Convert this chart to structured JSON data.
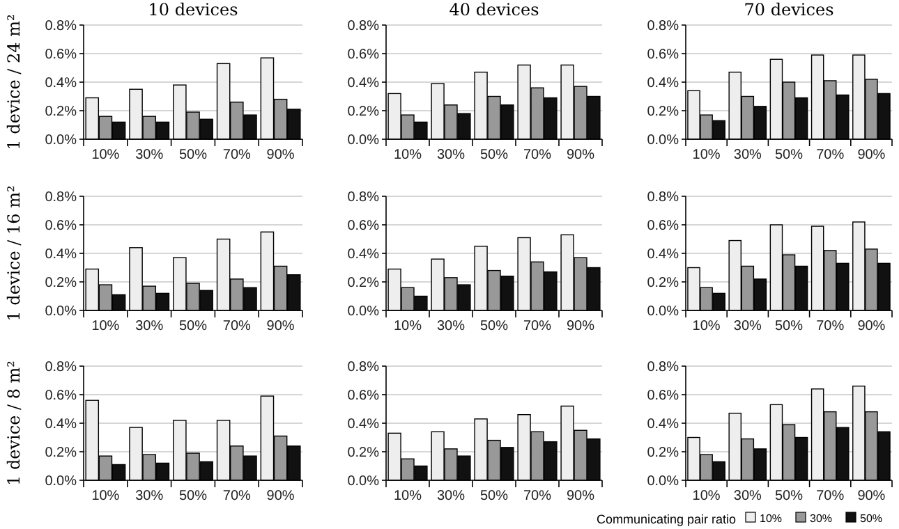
{
  "chart_data": [
    {
      "type": "bar",
      "title": "10 devices",
      "ylabel": "1 device / 24 m²",
      "categories": [
        "10%",
        "30%",
        "50%",
        "70%",
        "90%"
      ],
      "ylim": [
        0,
        0.8
      ],
      "yticks": [
        {
          "value": 0,
          "label": "0.0%"
        },
        {
          "value": 0.2,
          "label": "0.2%"
        },
        {
          "value": 0.4,
          "label": "0.4%"
        },
        {
          "value": 0.6,
          "label": "0.6%"
        },
        {
          "value": 0.8,
          "label": "0.8%"
        }
      ],
      "grid": "y",
      "series": [
        {
          "color": "#eeeeee",
          "values": [
            0.29,
            0.35,
            0.38,
            0.53,
            0.57
          ]
        },
        {
          "color": "#999999",
          "values": [
            0.16,
            0.16,
            0.19,
            0.26,
            0.28
          ]
        },
        {
          "color": "#111111",
          "values": [
            0.12,
            0.12,
            0.14,
            0.17,
            0.21
          ]
        }
      ]
    },
    {
      "type": "bar",
      "title": "40 devices",
      "categories": [
        "10%",
        "30%",
        "50%",
        "70%",
        "90%"
      ],
      "ylim": [
        0,
        0.8
      ],
      "yticks": [
        {
          "value": 0,
          "label": "0.0%"
        },
        {
          "value": 0.2,
          "label": "0.2%"
        },
        {
          "value": 0.4,
          "label": "0.4%"
        },
        {
          "value": 0.6,
          "label": "0.6%"
        },
        {
          "value": 0.8,
          "label": "0.8%"
        }
      ],
      "grid": "y",
      "series": [
        {
          "color": "#eeeeee",
          "values": [
            0.32,
            0.39,
            0.47,
            0.52,
            0.52
          ]
        },
        {
          "color": "#999999",
          "values": [
            0.17,
            0.24,
            0.3,
            0.36,
            0.37
          ]
        },
        {
          "color": "#111111",
          "values": [
            0.12,
            0.18,
            0.24,
            0.29,
            0.3
          ]
        }
      ]
    },
    {
      "type": "bar",
      "title": "70 devices",
      "categories": [
        "10%",
        "30%",
        "50%",
        "70%",
        "90%"
      ],
      "ylim": [
        0,
        0.8
      ],
      "yticks": [
        {
          "value": 0,
          "label": "0.0%"
        },
        {
          "value": 0.2,
          "label": "0.2%"
        },
        {
          "value": 0.4,
          "label": "0.4%"
        },
        {
          "value": 0.6,
          "label": "0.6%"
        },
        {
          "value": 0.8,
          "label": "0.8%"
        }
      ],
      "grid": "y",
      "series": [
        {
          "color": "#eeeeee",
          "values": [
            0.34,
            0.47,
            0.56,
            0.59,
            0.59
          ]
        },
        {
          "color": "#999999",
          "values": [
            0.17,
            0.3,
            0.4,
            0.41,
            0.42
          ]
        },
        {
          "color": "#111111",
          "values": [
            0.13,
            0.23,
            0.29,
            0.31,
            0.32
          ]
        }
      ]
    },
    {
      "type": "bar",
      "ylabel": "1 device / 16 m²",
      "categories": [
        "10%",
        "30%",
        "50%",
        "70%",
        "90%"
      ],
      "ylim": [
        0,
        0.8
      ],
      "yticks": [
        {
          "value": 0,
          "label": "0.0%"
        },
        {
          "value": 0.2,
          "label": "0.2%"
        },
        {
          "value": 0.4,
          "label": "0.4%"
        },
        {
          "value": 0.6,
          "label": "0.6%"
        },
        {
          "value": 0.8,
          "label": "0.8%"
        }
      ],
      "grid": "y",
      "series": [
        {
          "color": "#eeeeee",
          "values": [
            0.29,
            0.44,
            0.37,
            0.5,
            0.55
          ]
        },
        {
          "color": "#999999",
          "values": [
            0.18,
            0.17,
            0.19,
            0.22,
            0.31
          ]
        },
        {
          "color": "#111111",
          "values": [
            0.11,
            0.12,
            0.14,
            0.16,
            0.25
          ]
        }
      ]
    },
    {
      "type": "bar",
      "categories": [
        "10%",
        "30%",
        "50%",
        "70%",
        "90%"
      ],
      "ylim": [
        0,
        0.8
      ],
      "yticks": [
        {
          "value": 0,
          "label": "0.0%"
        },
        {
          "value": 0.2,
          "label": "0.2%"
        },
        {
          "value": 0.4,
          "label": "0.4%"
        },
        {
          "value": 0.6,
          "label": "0.6%"
        },
        {
          "value": 0.8,
          "label": "0.8%"
        }
      ],
      "grid": "y",
      "series": [
        {
          "color": "#eeeeee",
          "values": [
            0.29,
            0.36,
            0.45,
            0.51,
            0.53
          ]
        },
        {
          "color": "#999999",
          "values": [
            0.16,
            0.23,
            0.28,
            0.34,
            0.37
          ]
        },
        {
          "color": "#111111",
          "values": [
            0.1,
            0.18,
            0.24,
            0.27,
            0.3
          ]
        }
      ]
    },
    {
      "type": "bar",
      "categories": [
        "10%",
        "30%",
        "50%",
        "70%",
        "90%"
      ],
      "ylim": [
        0,
        0.8
      ],
      "yticks": [
        {
          "value": 0,
          "label": "0.0%"
        },
        {
          "value": 0.2,
          "label": "0.2%"
        },
        {
          "value": 0.4,
          "label": "0.4%"
        },
        {
          "value": 0.6,
          "label": "0.6%"
        },
        {
          "value": 0.8,
          "label": "0.8%"
        }
      ],
      "grid": "y",
      "series": [
        {
          "color": "#eeeeee",
          "values": [
            0.3,
            0.49,
            0.6,
            0.59,
            0.62
          ]
        },
        {
          "color": "#999999",
          "values": [
            0.16,
            0.31,
            0.39,
            0.42,
            0.43
          ]
        },
        {
          "color": "#111111",
          "values": [
            0.12,
            0.22,
            0.31,
            0.33,
            0.33
          ]
        }
      ]
    },
    {
      "type": "bar",
      "ylabel": "1 device / 8 m²",
      "categories": [
        "10%",
        "30%",
        "50%",
        "70%",
        "90%"
      ],
      "ylim": [
        0,
        0.8
      ],
      "yticks": [
        {
          "value": 0,
          "label": "0.0%"
        },
        {
          "value": 0.2,
          "label": "0.2%"
        },
        {
          "value": 0.4,
          "label": "0.4%"
        },
        {
          "value": 0.6,
          "label": "0.6%"
        },
        {
          "value": 0.8,
          "label": "0.8%"
        }
      ],
      "grid": "y",
      "series": [
        {
          "color": "#eeeeee",
          "values": [
            0.56,
            0.37,
            0.42,
            0.42,
            0.59
          ]
        },
        {
          "color": "#999999",
          "values": [
            0.17,
            0.18,
            0.19,
            0.24,
            0.31
          ]
        },
        {
          "color": "#111111",
          "values": [
            0.11,
            0.12,
            0.13,
            0.17,
            0.24
          ]
        }
      ]
    },
    {
      "type": "bar",
      "categories": [
        "10%",
        "30%",
        "50%",
        "70%",
        "90%"
      ],
      "ylim": [
        0,
        0.8
      ],
      "yticks": [
        {
          "value": 0,
          "label": "0.0%"
        },
        {
          "value": 0.2,
          "label": "0.2%"
        },
        {
          "value": 0.4,
          "label": "0.4%"
        },
        {
          "value": 0.6,
          "label": "0.6%"
        },
        {
          "value": 0.8,
          "label": "0.8%"
        }
      ],
      "grid": "y",
      "series": [
        {
          "color": "#eeeeee",
          "values": [
            0.33,
            0.34,
            0.43,
            0.46,
            0.52
          ]
        },
        {
          "color": "#999999",
          "values": [
            0.15,
            0.22,
            0.28,
            0.34,
            0.35
          ]
        },
        {
          "color": "#111111",
          "values": [
            0.1,
            0.17,
            0.23,
            0.27,
            0.29
          ]
        }
      ]
    },
    {
      "type": "bar",
      "categories": [
        "10%",
        "30%",
        "50%",
        "70%",
        "90%"
      ],
      "ylim": [
        0,
        0.8
      ],
      "yticks": [
        {
          "value": 0,
          "label": "0.0%"
        },
        {
          "value": 0.2,
          "label": "0.2%"
        },
        {
          "value": 0.4,
          "label": "0.4%"
        },
        {
          "value": 0.6,
          "label": "0.6%"
        },
        {
          "value": 0.8,
          "label": "0.8%"
        }
      ],
      "grid": "y",
      "legend": "bottom right",
      "legend_title": "Communicating pair ratio",
      "series": [
        {
          "name": "10%",
          "color": "#eeeeee",
          "values": [
            0.3,
            0.47,
            0.53,
            0.64,
            0.66
          ]
        },
        {
          "name": "30%",
          "color": "#999999",
          "values": [
            0.18,
            0.29,
            0.39,
            0.48,
            0.48
          ]
        },
        {
          "name": "50%",
          "color": "#111111",
          "values": [
            0.13,
            0.22,
            0.3,
            0.37,
            0.34
          ]
        }
      ]
    }
  ]
}
